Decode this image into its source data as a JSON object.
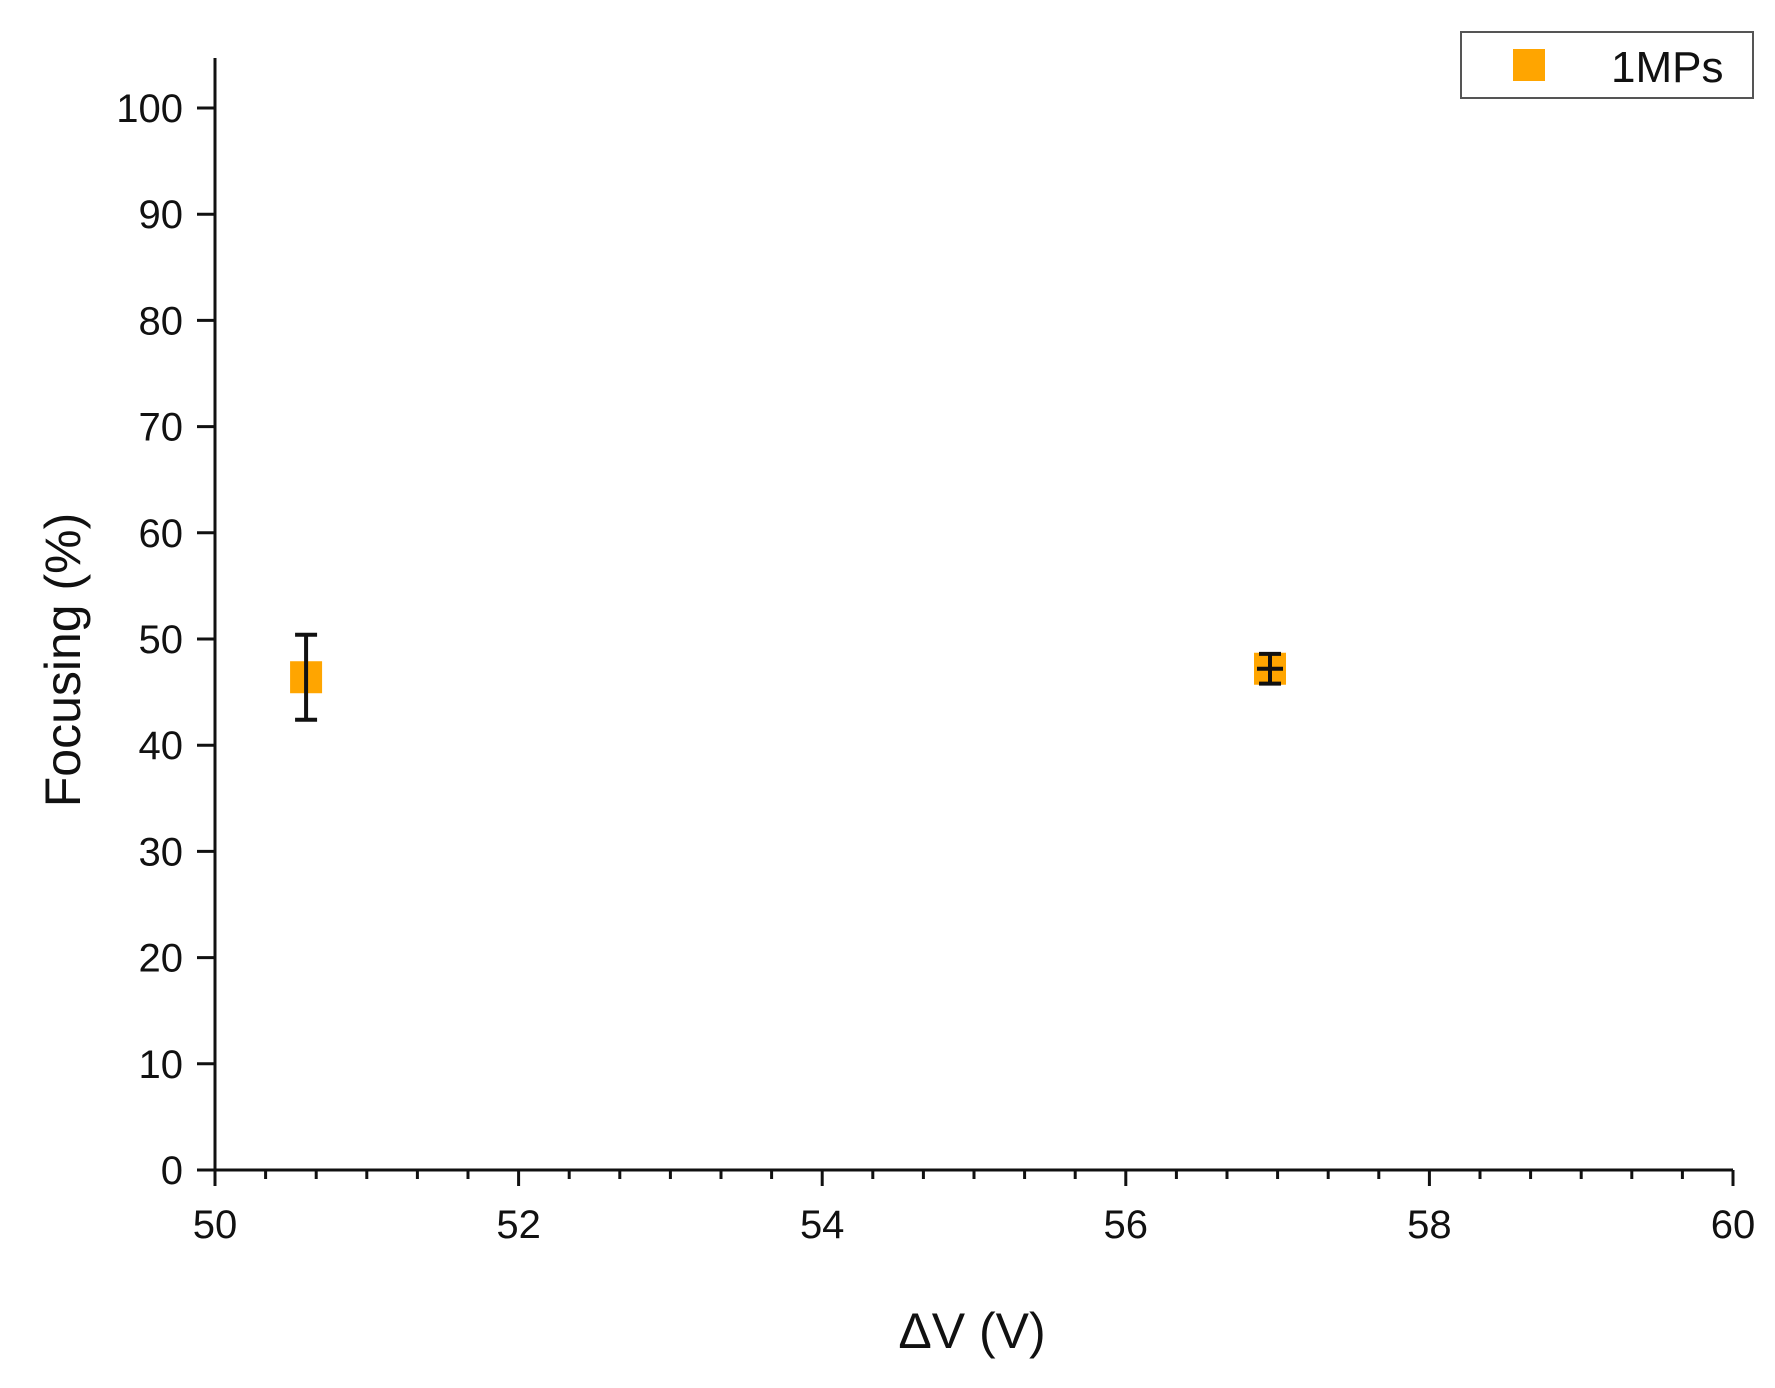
{
  "chart_data": {
    "type": "scatter",
    "xlabel": "ΔV (V)",
    "ylabel": "Focusing (%)",
    "xlim": [
      50,
      60
    ],
    "ylim": [
      0,
      100
    ],
    "x_major_ticks": [
      50,
      52,
      54,
      56,
      58,
      60
    ],
    "x_minor_step": 0.333,
    "y_major_ticks": [
      0,
      10,
      20,
      30,
      40,
      50,
      60,
      70,
      80,
      90,
      100
    ],
    "grid": false,
    "legend_position": "top-right",
    "series": [
      {
        "name": "1MPs",
        "color": "#FFA500",
        "marker": "square",
        "points": [
          {
            "x": 50.6,
            "y": 46.4,
            "yerr_low": 42.4,
            "yerr_high": 50.4
          },
          {
            "x": 56.95,
            "y": 47.2,
            "yerr_low": 45.8,
            "yerr_high": 48.6
          }
        ]
      }
    ]
  }
}
